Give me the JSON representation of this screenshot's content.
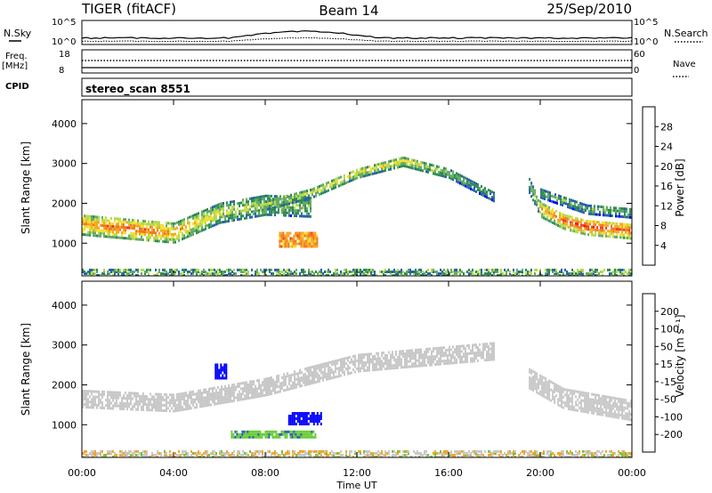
{
  "header": {
    "radar": "TIGER (fitACF)",
    "beam": "Beam 14",
    "date": "25/Sep/2010"
  },
  "top_panels": {
    "nsky_label": "N.Sky",
    "nsky_ticks": [
      "10^5",
      "10^0"
    ],
    "nsearch_label": "N.Search",
    "nsearch_ticks": [
      "10^5",
      "10^0"
    ],
    "freq_label": "Freq.",
    "freq_unit": "[MHz]",
    "freq_ticks": [
      "18",
      "8"
    ],
    "nave_label": "Nave",
    "nave_ticks": [
      "60",
      "0"
    ],
    "cpid_label": "CPID",
    "cpid_value": "stereo_scan 8551"
  },
  "chart_data": [
    {
      "type": "heatmap",
      "name": "power-panel",
      "ylabel": "Slant Range [km]",
      "yticks": [
        "4000",
        "3000",
        "2000",
        "1000"
      ],
      "ylim": [
        180,
        4600
      ],
      "xlim_hours": [
        0,
        24
      ],
      "colorbar": {
        "label": "Power [dB]",
        "ticks": [
          "28",
          "24",
          "20",
          "16",
          "12",
          "8",
          "4"
        ],
        "range": [
          0,
          32
        ],
        "colors": [
          "#0000ff",
          "#2a5fb0",
          "#2e8b57",
          "#66aa66",
          "#b3d94d",
          "#f2e030",
          "#f5a623",
          "#f07820",
          "#ea3c1f",
          "#ff0000"
        ]
      },
      "features": [
        {
          "type": "band",
          "t": [
            0,
            2,
            4,
            6,
            8,
            10
          ],
          "range_km": [
            1500,
            1400,
            1300,
            1800,
            2000,
            1950
          ],
          "width_km": 500,
          "power_db": [
            22,
            26,
            22,
            16,
            14,
            12
          ]
        },
        {
          "type": "band",
          "t": [
            8,
            10,
            12,
            14,
            16,
            18
          ],
          "range_km": [
            2000,
            2300,
            2800,
            3100,
            2800,
            2200
          ],
          "width_km": 250,
          "power_db": [
            14,
            16,
            18,
            18,
            12,
            8
          ]
        },
        {
          "type": "patch",
          "t": [
            8.6,
            10.3
          ],
          "range_km": [
            950,
            1300
          ],
          "power_db": 22
        },
        {
          "type": "band",
          "t": [
            19.5,
            20,
            21,
            22,
            24
          ],
          "range_km": [
            2500,
            1900,
            1600,
            1450,
            1350
          ],
          "width_km": 400,
          "power_db": [
            10,
            20,
            26,
            28,
            26
          ]
        },
        {
          "type": "band",
          "t": [
            20,
            22,
            24
          ],
          "range_km": [
            2300,
            1900,
            1800
          ],
          "width_km": 250,
          "power_db": [
            10,
            12,
            10
          ]
        }
      ]
    },
    {
      "type": "heatmap",
      "name": "velocity-panel",
      "ylabel": "Slant Range [km]",
      "yticks": [
        "4000",
        "3000",
        "2000",
        "1000"
      ],
      "ylim": [
        180,
        4600
      ],
      "xlim_hours": [
        0,
        24
      ],
      "xlabel": "Time UT",
      "xticks": [
        "00:00",
        "04:00",
        "08:00",
        "12:00",
        "16:00",
        "20:00",
        "00:00"
      ],
      "colorbar": {
        "label": "Velocity [m s⁻¹]",
        "ticks": [
          "200",
          "100",
          "50",
          "15",
          "-15",
          "-50",
          "-100",
          "-200"
        ],
        "colors": [
          "#ff0000",
          "#f05a1a",
          "#f5a623",
          "#c8c8c8",
          "#c8c8c8",
          "#66cc33",
          "#2e8b57",
          "#0000ff"
        ]
      },
      "features": [
        {
          "type": "band",
          "t": [
            0,
            4,
            8,
            12,
            16,
            18
          ],
          "range_km": [
            1700,
            1600,
            2000,
            2600,
            2800,
            2900
          ],
          "width_km": 450,
          "velocity": 0
        },
        {
          "type": "patch",
          "t": [
            9.0,
            10.4
          ],
          "range_km": [
            1050,
            1350
          ],
          "velocity": 180
        },
        {
          "type": "patch",
          "t": [
            6.5,
            10.2
          ],
          "range_km": [
            720,
            900
          ],
          "velocity": 60
        },
        {
          "type": "patch",
          "t": [
            5.8,
            6.3
          ],
          "range_km": [
            2200,
            2600
          ],
          "velocity": 200
        },
        {
          "type": "band",
          "t": [
            19.5,
            21,
            24
          ],
          "range_km": [
            2200,
            1700,
            1400
          ],
          "width_km": 500,
          "velocity": 0
        }
      ]
    }
  ]
}
